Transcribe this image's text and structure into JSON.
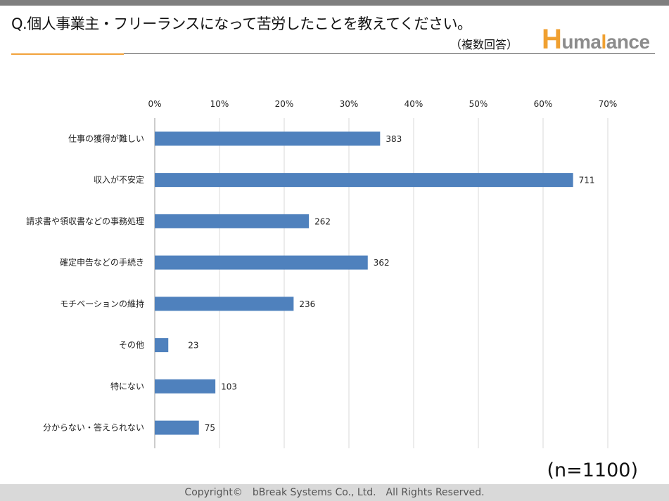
{
  "header": {
    "question": "Q.個人事業主・フリーランスになって苦労したことを教えてください。",
    "note": "（複数回答）",
    "logo_text": "Humalance"
  },
  "chart_data": {
    "type": "bar",
    "orientation": "horizontal",
    "categories": [
      "仕事の獲得が難しい",
      "収入が不安定",
      "請求書や領収書などの事務処理",
      "確定申告などの手続き",
      "モチベーションの維持",
      "その他",
      "特にない",
      "分からない・答えられない"
    ],
    "values": [
      383,
      711,
      262,
      362,
      236,
      23,
      103,
      75
    ],
    "total": 1100,
    "x_ticks": [
      "0%",
      "10%",
      "20%",
      "30%",
      "40%",
      "50%",
      "60%",
      "70%"
    ],
    "xlim": [
      0,
      0.7
    ],
    "grid": true,
    "bar_color": "#4f81bd"
  },
  "sample_size": "(n=1100)",
  "footer": {
    "copyright": "Copyright©　bBreak Systems Co., Ltd.　All Rights Reserved."
  }
}
